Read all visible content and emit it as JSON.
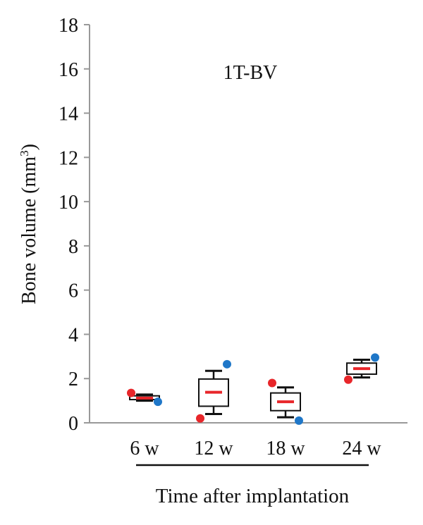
{
  "chart_data": {
    "type": "box",
    "title": "1T-BV",
    "ylabel": "Bone volume (mm",
    "ylabel_sup": "3",
    "ylabel_close": ")",
    "xlabel": "Time after implantation",
    "ylim": [
      0,
      18
    ],
    "yticks": [
      0,
      2,
      4,
      6,
      8,
      10,
      12,
      14,
      16,
      18
    ],
    "categories": [
      "6 w",
      "12 w",
      "18 w",
      "24 w"
    ],
    "boxes": [
      {
        "whisker_low": 1.0,
        "q1": 1.05,
        "median": 1.12,
        "q3": 1.22,
        "whisker_high": 1.28,
        "points": [
          {
            "value": 1.35,
            "color": "#e8262a"
          },
          {
            "value": 0.95,
            "color": "#1f77c8"
          }
        ]
      },
      {
        "whisker_low": 0.4,
        "q1": 0.75,
        "median": 1.38,
        "q3": 1.98,
        "whisker_high": 2.35,
        "points": [
          {
            "value": 0.2,
            "color": "#e8262a"
          },
          {
            "value": 2.65,
            "color": "#1f77c8"
          }
        ]
      },
      {
        "whisker_low": 0.25,
        "q1": 0.55,
        "median": 0.95,
        "q3": 1.35,
        "whisker_high": 1.6,
        "points": [
          {
            "value": 1.8,
            "color": "#e8262a"
          },
          {
            "value": 0.1,
            "color": "#1f77c8"
          }
        ]
      },
      {
        "whisker_low": 2.05,
        "q1": 2.2,
        "median": 2.45,
        "q3": 2.7,
        "whisker_high": 2.85,
        "points": [
          {
            "value": 1.95,
            "color": "#e8262a"
          },
          {
            "value": 2.95,
            "color": "#1f77c8"
          }
        ]
      }
    ],
    "colors": {
      "median": "#e8262a",
      "box_fill": "#ffffff",
      "axis": "#999999",
      "stroke": "#111111"
    }
  }
}
